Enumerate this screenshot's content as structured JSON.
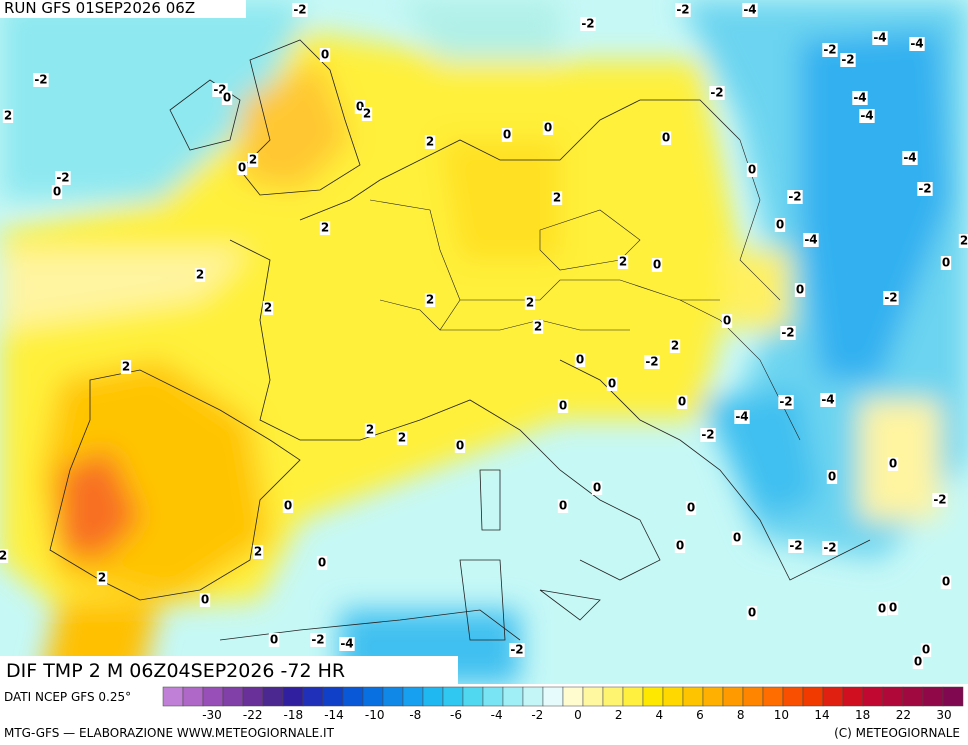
{
  "header": {
    "run": "RUN GFS 01SEP2026 06Z"
  },
  "map": {
    "title": "DIF TMP 2 M 06Z04SEP2026 -72 HR",
    "contour_labels": [
      -2,
      -2,
      -2,
      -4,
      -4,
      -4,
      -2,
      -2,
      -2,
      -2,
      0,
      0,
      0,
      2,
      2,
      -2,
      -4,
      -4,
      0,
      0,
      0,
      2,
      2,
      0,
      -4,
      -2,
      0,
      0,
      2,
      -2,
      -2,
      0,
      2,
      -4,
      2,
      2,
      0,
      0,
      2,
      0,
      2,
      2,
      -2,
      2,
      2,
      0,
      -2,
      2,
      0,
      -2,
      2,
      0,
      0,
      0,
      -2,
      -4,
      -4,
      2,
      2,
      -2,
      0,
      0,
      0,
      0,
      -2,
      0,
      0,
      0,
      0,
      2,
      0,
      -2,
      -2,
      0,
      2,
      0,
      0,
      0,
      0,
      0,
      0,
      -2,
      -4,
      -2,
      0,
      0,
      2
    ]
  },
  "legend": {
    "source": "DATI NCEP GFS 0.25°",
    "colors": [
      "#c080d8",
      "#b068c8",
      "#9850b8",
      "#8040a8",
      "#683098",
      "#4a2890",
      "#3020a0",
      "#2030b8",
      "#1040c8",
      "#0858d8",
      "#0870e0",
      "#1088e8",
      "#18a0f0",
      "#20b8f0",
      "#30c8f0",
      "#50d8f0",
      "#78e4f4",
      "#a0eef6",
      "#c4f6f8",
      "#e6fcfc",
      "#fffcd0",
      "#fff8a0",
      "#fff470",
      "#fff040",
      "#ffe800",
      "#ffd800",
      "#ffc400",
      "#ffb000",
      "#ff9a00",
      "#ff8400",
      "#ff6c00",
      "#f85000",
      "#f03a00",
      "#e02010",
      "#d01020",
      "#c00830",
      "#b00838",
      "#a00840",
      "#900848",
      "#800850"
    ],
    "labels": [
      -30,
      -22,
      -18,
      -14,
      -10,
      -8,
      -6,
      -4,
      -2,
      0,
      2,
      4,
      6,
      8,
      10,
      14,
      18,
      22,
      30
    ]
  },
  "footer": {
    "left": "MTG-GFS — ELABORAZIONE WWW.METEOGIORNALE.IT",
    "right": "(C) METEOGIORNALE"
  }
}
